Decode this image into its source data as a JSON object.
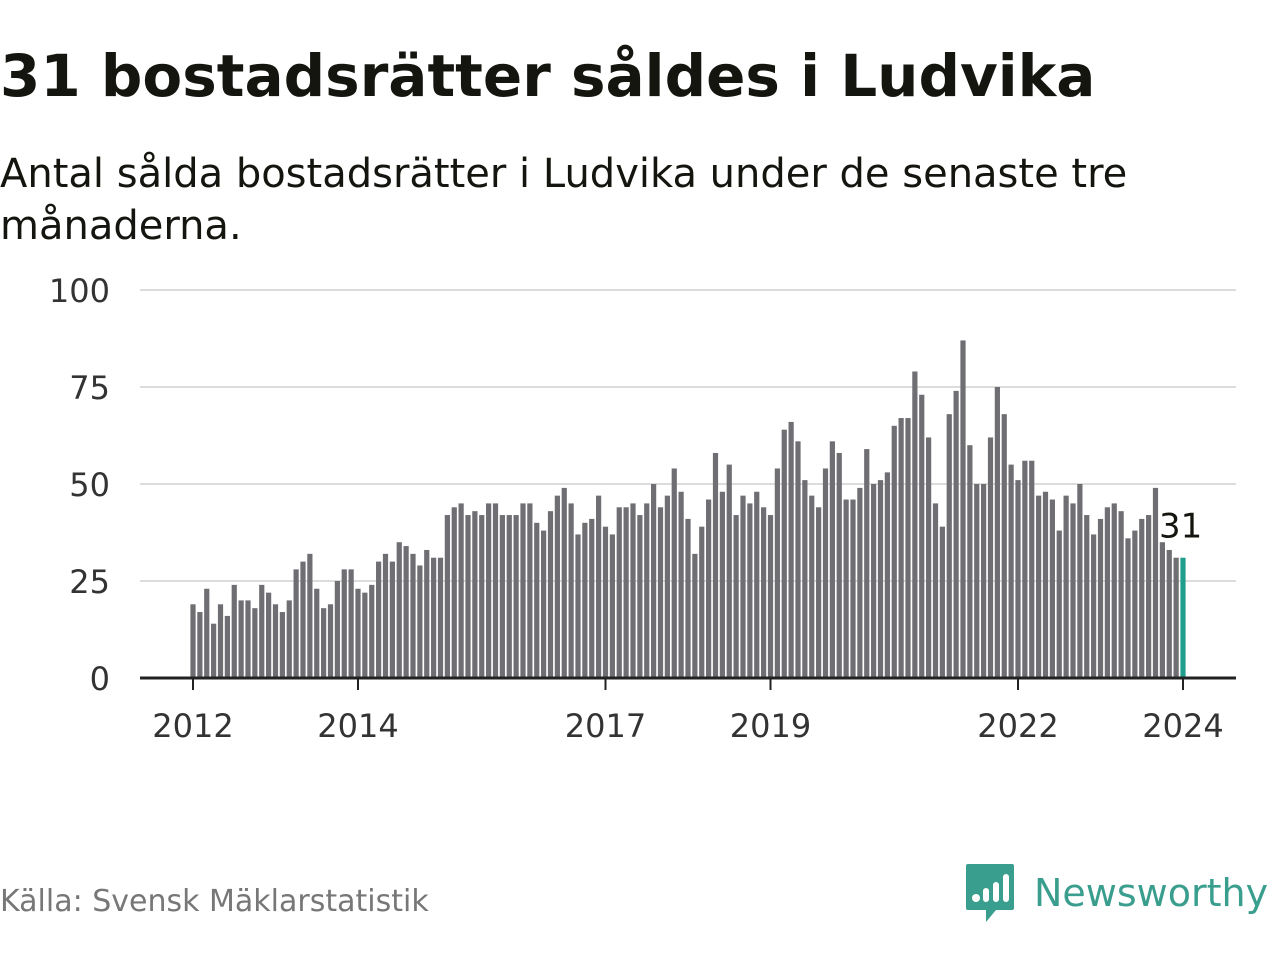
{
  "title": "31 bostadsrätter såldes i Ludvika",
  "subtitle": "Antal sålda bostadsrätter i Ludvika under de senaste tre månaderna.",
  "source": "Källa: Svensk Mäklarstatistik",
  "brand": {
    "name": "Newsworthy",
    "icon": "newsworthy-logo-icon"
  },
  "colors": {
    "bar": "#6f6e73",
    "highlight": "#1f9e8e",
    "grid": "#dcdcdc",
    "axis": "#222222"
  },
  "chart_data": {
    "type": "bar",
    "title": "31 bostadsrätter såldes i Ludvika",
    "xlabel": "",
    "ylabel": "",
    "ylim": [
      0,
      100
    ],
    "yticks": [
      0,
      25,
      50,
      75,
      100
    ],
    "xticks": [
      {
        "label": "2012",
        "index": 0
      },
      {
        "label": "2014",
        "index": 24
      },
      {
        "label": "2017",
        "index": 60
      },
      {
        "label": "2019",
        "index": 84
      },
      {
        "label": "2022",
        "index": 120
      },
      {
        "label": "2024",
        "index": 144
      }
    ],
    "start": "2012-01",
    "highlight_index": 144,
    "annotation": "31",
    "values": [
      19,
      17,
      23,
      14,
      19,
      16,
      24,
      20,
      20,
      18,
      24,
      22,
      19,
      17,
      20,
      28,
      30,
      32,
      23,
      18,
      19,
      25,
      28,
      28,
      23,
      22,
      24,
      30,
      32,
      30,
      35,
      34,
      32,
      29,
      33,
      31,
      31,
      42,
      44,
      45,
      42,
      43,
      42,
      45,
      45,
      42,
      42,
      42,
      45,
      45,
      40,
      38,
      43,
      47,
      49,
      45,
      37,
      40,
      41,
      47,
      39,
      37,
      44,
      44,
      45,
      42,
      45,
      50,
      44,
      47,
      54,
      48,
      41,
      32,
      39,
      46,
      58,
      48,
      55,
      42,
      47,
      45,
      48,
      44,
      42,
      54,
      64,
      66,
      61,
      51,
      47,
      44,
      54,
      61,
      58,
      46,
      46,
      49,
      59,
      50,
      51,
      53,
      65,
      67,
      67,
      79,
      73,
      62,
      45,
      39,
      68,
      74,
      87,
      60,
      50,
      50,
      62,
      75,
      68,
      55,
      51,
      56,
      56,
      47,
      48,
      46,
      38,
      47,
      45,
      50,
      42,
      37,
      41,
      44,
      45,
      43,
      36,
      38,
      41,
      42,
      49,
      35,
      33,
      31,
      31
    ]
  }
}
